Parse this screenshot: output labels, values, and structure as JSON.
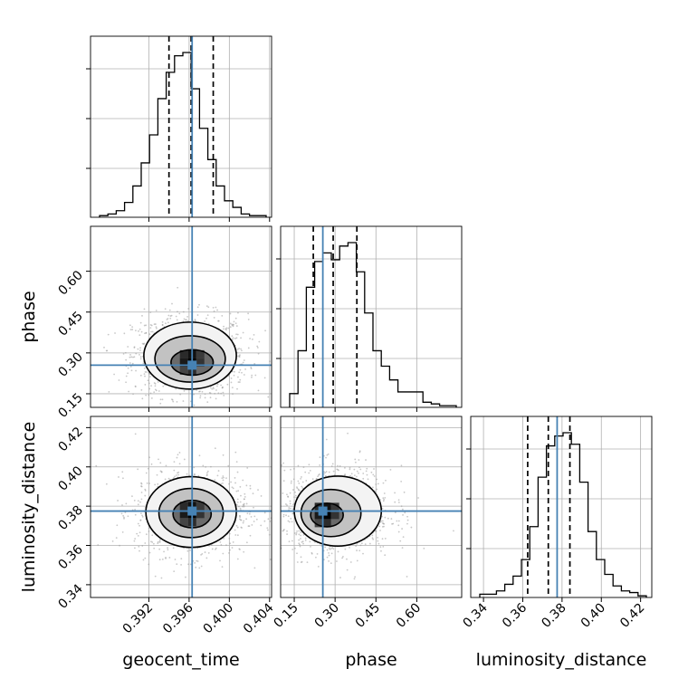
{
  "chart_data": {
    "type": "corner",
    "parameters": [
      "geocent_time",
      "phase",
      "luminosity_distance"
    ],
    "axis_labels": [
      "geocent_time",
      "phase",
      "luminosity_distance"
    ],
    "ranges": {
      "geocent_time": [
        0.3862,
        0.4042
      ],
      "phase": [
        0.1,
        0.765
      ],
      "luminosity_distance": [
        0.3335,
        0.4257
      ]
    },
    "ticks": {
      "geocent_time": [
        0.392,
        0.396,
        0.4,
        0.404
      ],
      "phase": [
        0.15,
        0.3,
        0.45,
        0.6
      ],
      "luminosity_distance": [
        0.34,
        0.36,
        0.38,
        0.4,
        0.42
      ]
    },
    "tick_labels": {
      "geocent_time": [
        "0.392",
        "0.396",
        "0.400",
        "0.404"
      ],
      "phase": [
        "0.15",
        "0.30",
        "0.45",
        "0.60"
      ],
      "luminosity_distance": [
        "0.34",
        "0.36",
        "0.38",
        "0.40",
        "0.42"
      ]
    },
    "truths": {
      "geocent_time": 0.3963,
      "phase": 0.255,
      "luminosity_distance": 0.3775
    },
    "quantiles": {
      "geocent_time": [
        0.394,
        0.3962,
        0.3984
      ],
      "phase": [
        0.22,
        0.293,
        0.38
      ],
      "luminosity_distance": [
        0.3625,
        0.373,
        0.384
      ]
    },
    "histograms": {
      "geocent_time": [
        1,
        2,
        4,
        9,
        19,
        33,
        50,
        72,
        88,
        98,
        100,
        78,
        54,
        35,
        19,
        10,
        6,
        2,
        1,
        1
      ],
      "phase": [
        8,
        33,
        70,
        85,
        90,
        86,
        94,
        96,
        79,
        55,
        33,
        24,
        16,
        9,
        9,
        9,
        3,
        2,
        1,
        1
      ],
      "luminosity_distance": [
        2,
        2,
        4,
        8,
        13,
        23,
        43,
        73,
        92,
        98,
        100,
        93,
        70,
        40,
        23,
        14,
        7,
        4,
        3,
        1
      ]
    },
    "contours": {
      "geocent_time_phase": [
        {
          "level": 0.39,
          "center": [
            0.3963,
            0.265
          ],
          "radius": [
            0.0021,
            0.047
          ]
        },
        {
          "level": 0.86,
          "center": [
            0.3961,
            0.278
          ],
          "radius": [
            0.0035,
            0.085
          ]
        },
        {
          "level": 0.99,
          "center": [
            0.3961,
            0.29
          ],
          "radius": [
            0.0046,
            0.123
          ]
        }
      ],
      "geocent_time_luminosity_distance": [
        {
          "level": 0.39,
          "center": [
            0.3963,
            0.376
          ],
          "radius": [
            0.0019,
            0.007
          ]
        },
        {
          "level": 0.86,
          "center": [
            0.3962,
            0.3765
          ],
          "radius": [
            0.0032,
            0.0125
          ]
        },
        {
          "level": 0.99,
          "center": [
            0.3962,
            0.377
          ],
          "radius": [
            0.0045,
            0.018
          ]
        }
      ],
      "phase_luminosity_distance": [
        {
          "level": 0.39,
          "center": [
            0.27,
            0.3755
          ],
          "radius": [
            0.06,
            0.006
          ]
        },
        {
          "level": 0.86,
          "center": [
            0.285,
            0.3765
          ],
          "radius": [
            0.11,
            0.012
          ]
        },
        {
          "level": 0.99,
          "center": [
            0.31,
            0.3775
          ],
          "radius": [
            0.16,
            0.0178
          ]
        }
      ]
    },
    "colors": {
      "truth": "#4682b4",
      "line": "#000000",
      "grid": "#b0b0b0",
      "scatter": "#9a9a9a"
    },
    "grid": true
  }
}
